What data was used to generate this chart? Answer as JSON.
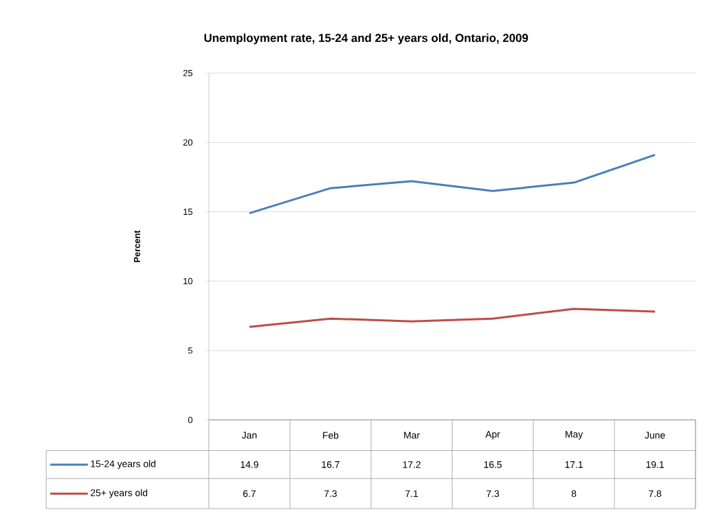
{
  "chart_data": {
    "type": "line",
    "title": "Unemployment rate, 15-24 and 25+ years old, Ontario, 2009",
    "ylabel": "Percent",
    "categories": [
      "Jan",
      "Feb",
      "Mar",
      "Apr",
      "May",
      "June"
    ],
    "series": [
      {
        "name": "15-24 years old",
        "color": "#4a7ebb",
        "values": [
          14.9,
          16.7,
          17.2,
          16.5,
          17.1,
          19.1
        ]
      },
      {
        "name": "25+ years old",
        "color": "#be4b48",
        "values": [
          6.7,
          7.3,
          7.1,
          7.3,
          8,
          7.8
        ]
      }
    ],
    "ylim": [
      0,
      25
    ],
    "yticks": [
      0,
      5,
      10,
      15,
      20,
      25
    ],
    "grid": "y",
    "data_labels": true,
    "legend": "bottom left",
    "marker": "none",
    "line_style": "solid"
  }
}
